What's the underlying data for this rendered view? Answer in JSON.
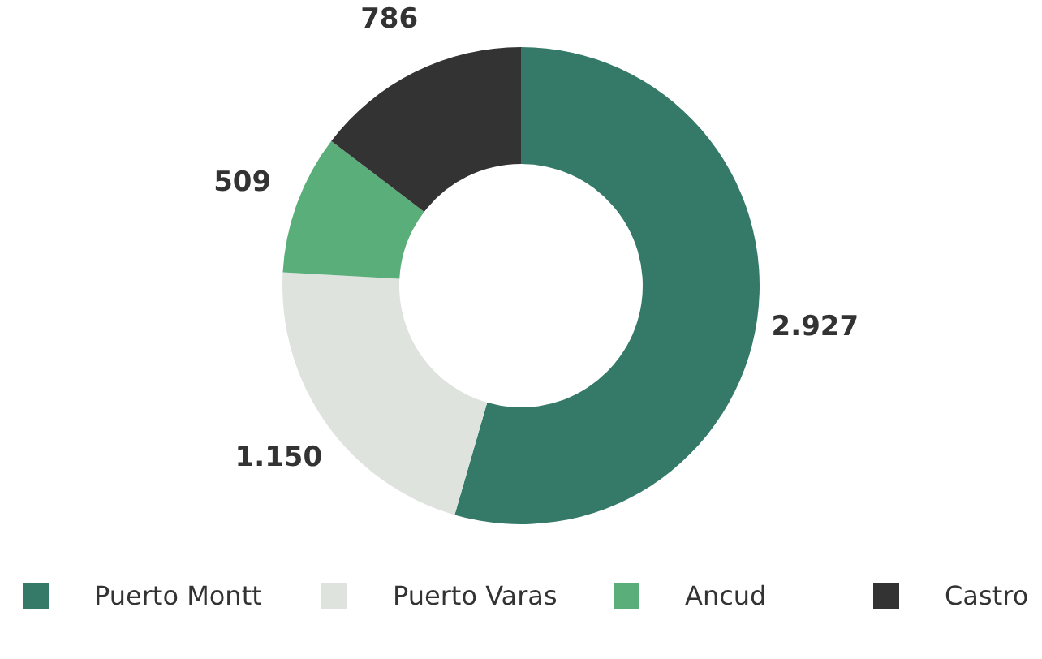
{
  "chart_data": {
    "type": "donut",
    "categories": [
      "Puerto Montt",
      "Puerto Varas",
      "Ancud",
      "Castro"
    ],
    "values": [
      2927,
      1150,
      509,
      786
    ],
    "colors": [
      "#357a68",
      "#dfe3de",
      "#5aae7a",
      "#333333"
    ],
    "value_labels": [
      "2.927",
      "1.150",
      "509",
      "786"
    ],
    "legend": "bottom"
  }
}
